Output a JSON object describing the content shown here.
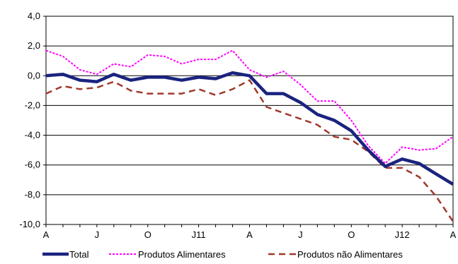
{
  "chart_data": {
    "type": "line",
    "title": "",
    "xlabel": "",
    "ylabel": "",
    "ylim": [
      -10,
      4
    ],
    "yticks": [
      "4,0",
      "2,0",
      "0,0",
      "-2,0",
      "-4,0",
      "-6,0",
      "-8,0",
      "-10,0"
    ],
    "ytick_values": [
      4,
      2,
      0,
      -2,
      -4,
      -6,
      -8,
      -10
    ],
    "xtick_labels": [
      "A",
      "J",
      "O",
      "J11",
      "A",
      "J",
      "O",
      "J12",
      "A"
    ],
    "n_points": 25,
    "grid": "horizontal",
    "legend_position": "bottom",
    "series": [
      {
        "name": "Total",
        "color": "#1a237e",
        "style": "solid-thick",
        "values": [
          0.0,
          0.1,
          -0.3,
          -0.4,
          0.1,
          -0.3,
          -0.1,
          -0.1,
          -0.3,
          -0.1,
          -0.2,
          0.2,
          0.0,
          -1.2,
          -1.2,
          -1.8,
          -2.6,
          -3.0,
          -3.7,
          -5.0,
          -6.1,
          -5.6,
          -5.9,
          -6.6,
          -7.3
        ]
      },
      {
        "name": "Produtos Alimentares",
        "color": "#ff00ff",
        "style": "dotted",
        "values": [
          1.7,
          1.3,
          0.4,
          0.1,
          0.8,
          0.6,
          1.4,
          1.3,
          0.8,
          1.1,
          1.1,
          1.7,
          0.4,
          -0.1,
          0.3,
          -0.6,
          -1.7,
          -1.7,
          -3.0,
          -4.7,
          -5.9,
          -4.8,
          -5.0,
          -4.9,
          -4.1
        ]
      },
      {
        "name": "Produtos não Alimentares",
        "color": "#a0382c",
        "style": "dashed",
        "values": [
          -1.2,
          -0.7,
          -0.9,
          -0.8,
          -0.4,
          -1.0,
          -1.2,
          -1.2,
          -1.2,
          -0.9,
          -1.3,
          -0.9,
          -0.3,
          -2.1,
          -2.5,
          -2.9,
          -3.3,
          -4.1,
          -4.3,
          -5.1,
          -6.2,
          -6.2,
          -6.8,
          -8.1,
          -9.8
        ]
      }
    ]
  }
}
